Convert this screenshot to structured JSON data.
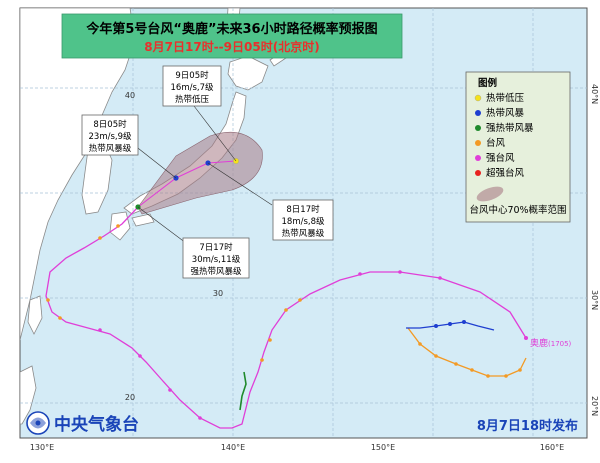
{
  "title": {
    "line1": "今年第5号台风“奥鹿”未来36小时路径概率预报图",
    "line2": "8月7日17时--9日05时(北京时)",
    "bg": "#4fc38a",
    "line2_color": "#e8312c"
  },
  "axes": {
    "lon_labels": [
      "130°E",
      "140°E",
      "150°E",
      "160°E"
    ],
    "lat_labels": [
      "40°N",
      "30°N",
      "20°N"
    ],
    "inner_labels": [
      "40",
      "30",
      "20"
    ]
  },
  "annotations": [
    {
      "lines": [
        "9日05时",
        "16m/s,7级",
        "热带低压"
      ]
    },
    {
      "lines": [
        "8日05时",
        "23m/s,9级",
        "热带风暴级"
      ]
    },
    {
      "lines": [
        "8日17时",
        "18m/s,8级",
        "热带风暴级"
      ]
    },
    {
      "lines": [
        "7日17时",
        "30m/s,11级",
        "强热带风暴级"
      ]
    }
  ],
  "legend": {
    "title": "图例",
    "items": [
      {
        "label": "热带低压",
        "color": "#f5e21b"
      },
      {
        "label": "热带风暴",
        "color": "#1f3fd0"
      },
      {
        "label": "强热带风暴",
        "color": "#1f8a2c"
      },
      {
        "label": "台风",
        "color": "#f39a24"
      },
      {
        "label": "强台风",
        "color": "#e03fd8"
      },
      {
        "label": "超强台风",
        "color": "#e8221f"
      }
    ],
    "cone_label": "台风中心70%概率范围",
    "bg": "#e6f0dc"
  },
  "storm_label": {
    "name": "奥鹿",
    "code": "(1705)",
    "color": "#e03fd8"
  },
  "agency": {
    "name": "中央气象台",
    "color": "#1a44b8"
  },
  "release": {
    "text": "8月7日18时发布",
    "color": "#1a44b8"
  },
  "colors": {
    "sea": "#d4ebf6",
    "land": "#ffffff",
    "grid": "#a9c3d8",
    "cone": "#a87b86"
  }
}
